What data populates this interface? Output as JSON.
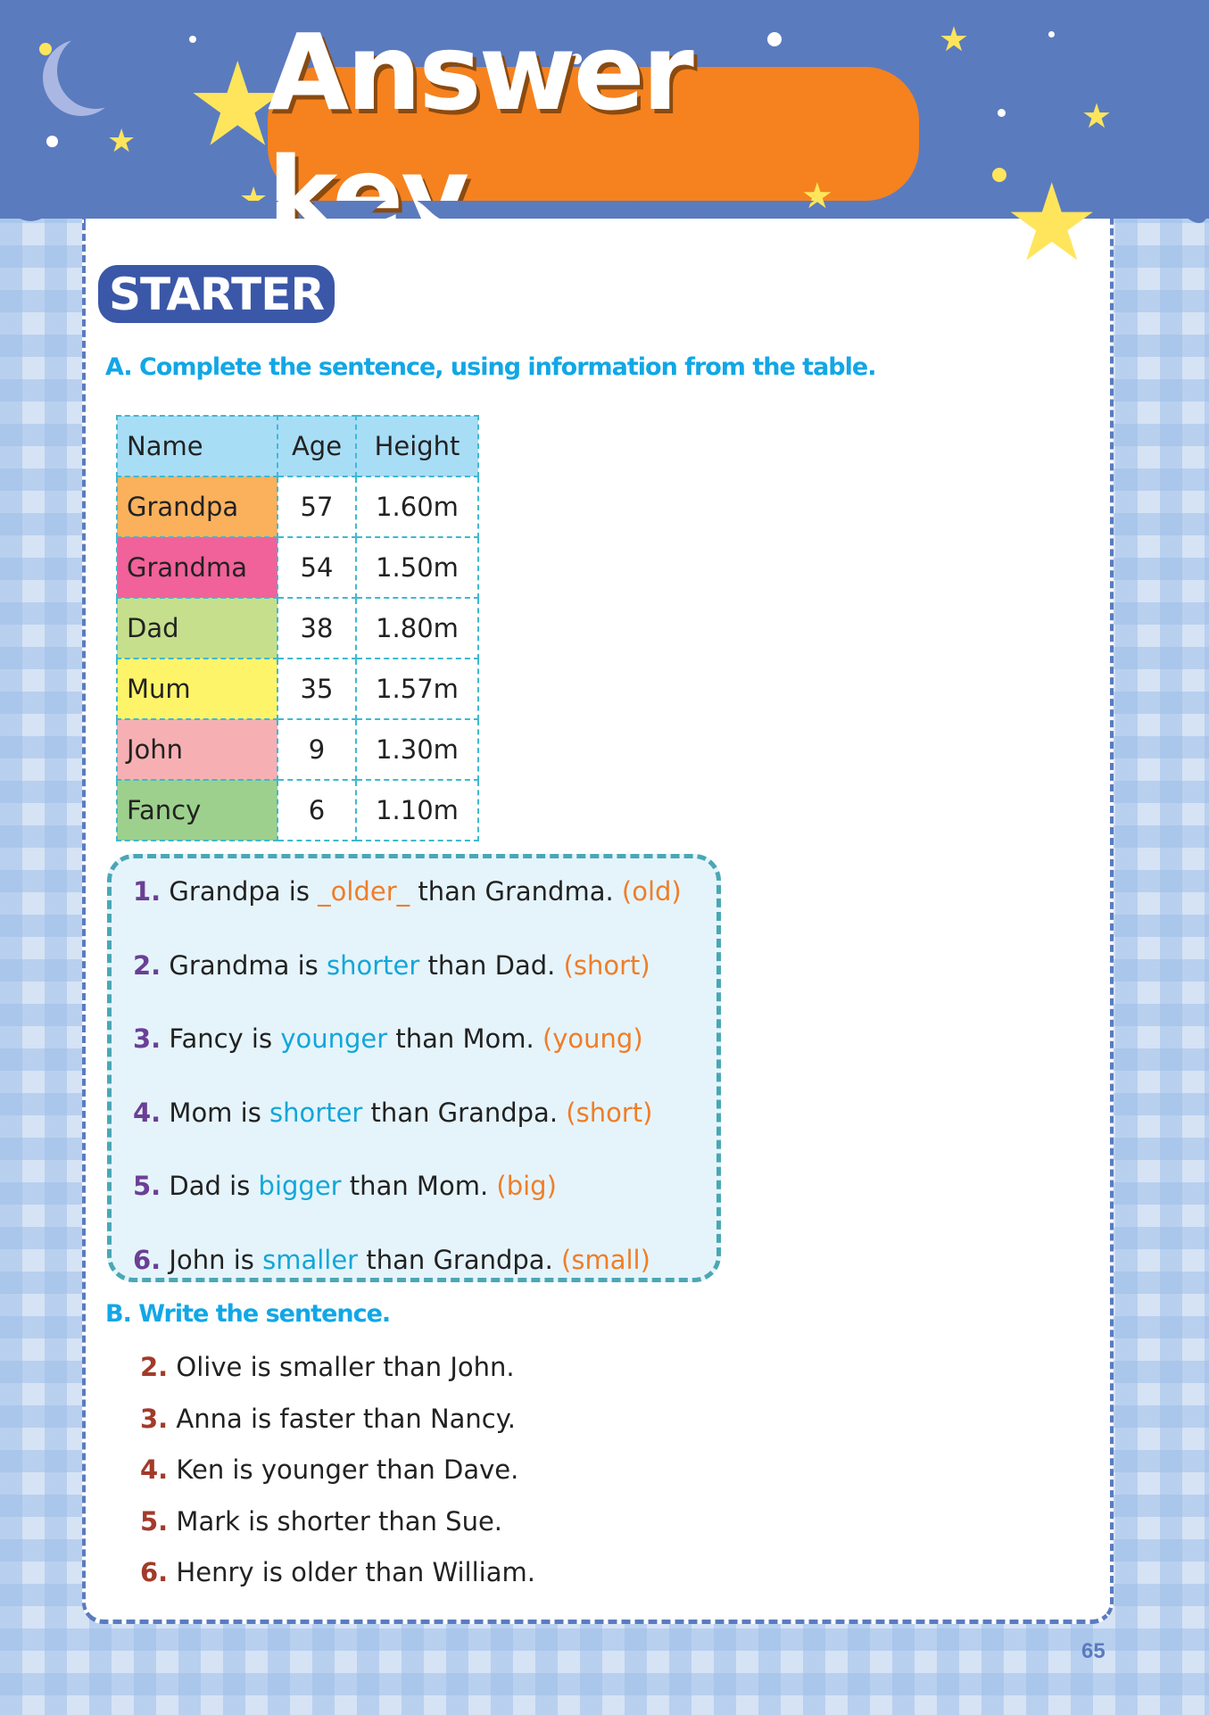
{
  "header": {
    "title": "Answer key"
  },
  "section_badge": "STARTER",
  "section_a": {
    "instruction": "A. Complete the sentence, using information from the table.",
    "table": {
      "headers": [
        "Name",
        "Age",
        "Height"
      ],
      "rows": [
        {
          "name": "Grandpa",
          "age": "57",
          "height": "1.60m",
          "color": "#fbb15c"
        },
        {
          "name": "Grandma",
          "age": "54",
          "height": "1.50m",
          "color": "#f1619a"
        },
        {
          "name": "Dad",
          "age": "38",
          "height": "1.80m",
          "color": "#c6df8c"
        },
        {
          "name": "Mum",
          "age": "35",
          "height": "1.57m",
          "color": "#fef46a"
        },
        {
          "name": "John",
          "age": "9",
          "height": "1.30m",
          "color": "#f6b0b3"
        },
        {
          "name": "Fancy",
          "age": "6",
          "height": "1.10m",
          "color": "#9dd08d"
        }
      ]
    },
    "answers": [
      {
        "num": "1.",
        "before": "Grandpa is ",
        "answer": "_older_",
        "after": " than Grandma. ",
        "hint": "(old)"
      },
      {
        "num": "2.",
        "before": "Grandma is ",
        "answer": "shorter",
        "after": " than Dad. ",
        "hint": "(short)"
      },
      {
        "num": "3.",
        "before": "Fancy is ",
        "answer": "younger",
        "after": " than Mom. ",
        "hint": "(young)"
      },
      {
        "num": "4.",
        "before": "Mom is ",
        "answer": "shorter",
        "after": " than Grandpa. ",
        "hint": "(short)"
      },
      {
        "num": "5.",
        "before": "Dad is ",
        "answer": "bigger",
        "after": " than Mom. ",
        "hint": "(big)"
      },
      {
        "num": "6.",
        "before": "John is ",
        "answer": "smaller",
        "after": " than Grandpa. ",
        "hint": "(small)"
      }
    ]
  },
  "section_b": {
    "instruction": "B. Write the sentence.",
    "items": [
      {
        "num": "2.",
        "text": "Olive is smaller than John."
      },
      {
        "num": "3.",
        "text": "Anna is faster than Nancy."
      },
      {
        "num": "4.",
        "text": "Ken is younger than Dave."
      },
      {
        "num": "5.",
        "text": "Mark is shorter than Sue."
      },
      {
        "num": "6.",
        "text": "Henry is older than William."
      }
    ]
  },
  "page_number": "65",
  "colors": {
    "header_bg": "#5b7bbf",
    "title_bg": "#f5821f",
    "section_heading": "#11a7e6",
    "answer_fill": "#13a6d8",
    "hint": "#f07d28"
  }
}
